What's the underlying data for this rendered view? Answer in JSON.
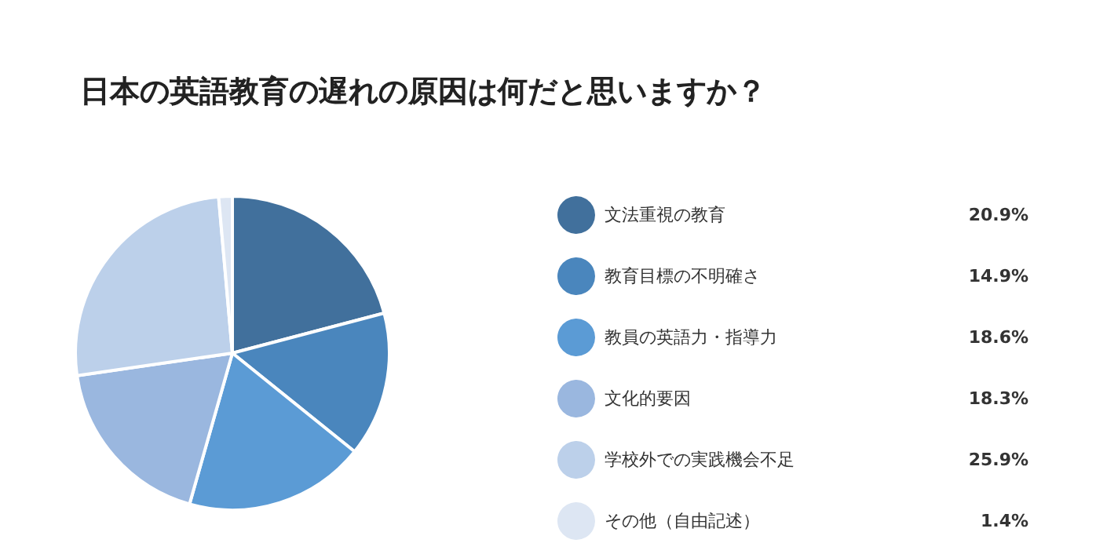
{
  "chart_data": {
    "type": "pie",
    "title": "日本の英語教育の遅れの原因は何だと思いますか？",
    "categories": [
      "文法重視の教育",
      "教育目標の不明確さ",
      "教員の英語力・指導力",
      "文化的要因",
      "学校外での実践機会不足",
      "その他（自由記述）"
    ],
    "values": [
      20.9,
      14.9,
      18.6,
      18.3,
      25.9,
      1.4
    ],
    "value_labels": [
      "20.9%",
      "14.9%",
      "18.6%",
      "18.3%",
      "25.9%",
      "1.4%"
    ],
    "colors": [
      "#41709c",
      "#4a86bd",
      "#5b9bd5",
      "#9ab7df",
      "#bcd0ea",
      "#dde6f3"
    ],
    "legend": "right"
  }
}
